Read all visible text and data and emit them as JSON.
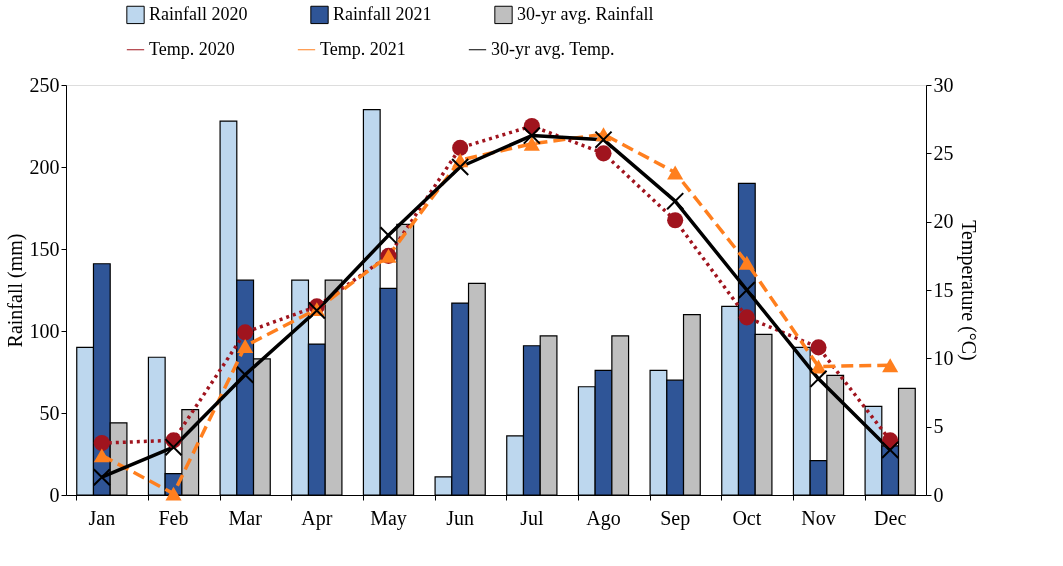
{
  "chart_data": {
    "type": "bar",
    "ylabel": "Rainfall (mm)",
    "y2label": "Temperature (°C)",
    "categories": [
      "Jan",
      "Feb",
      "Mar",
      "Apr",
      "May",
      "Jun",
      "Jul",
      "Ago",
      "Sep",
      "Oct",
      "Nov",
      "Dec"
    ],
    "ylim": [
      0,
      250
    ],
    "yticks": [
      0,
      50,
      100,
      150,
      200,
      250
    ],
    "y2lim": [
      0,
      30
    ],
    "y2ticks": [
      0,
      5,
      10,
      15,
      20,
      25,
      30
    ],
    "legend": "top",
    "grid": false,
    "series": [
      {
        "name": "Rainfall 2020",
        "color": "#bdd7ee",
        "values": [
          90,
          84,
          228,
          131,
          235,
          11,
          36,
          66,
          76,
          115,
          90,
          54
        ]
      },
      {
        "name": "Rainfall 2021",
        "color": "#2f5597",
        "values": [
          141,
          13,
          131,
          92,
          126,
          117,
          91,
          76,
          70,
          190,
          21,
          30
        ]
      },
      {
        "name": "30-yr avg. Rainfall",
        "color": "#bfbfbf",
        "values": [
          44,
          52,
          83,
          131,
          165,
          129,
          97,
          97,
          110,
          98,
          73,
          65
        ]
      },
      {
        "name": "Temp. 2020",
        "type": "line",
        "axis": "y2",
        "color": "#a0141e",
        "marker": "circle",
        "line_style": "dotted",
        "values": [
          3.8,
          4.0,
          11.9,
          13.8,
          17.5,
          25.4,
          27.0,
          25.0,
          20.1,
          13.0,
          10.8,
          4.0
        ]
      },
      {
        "name": "Temp. 2021",
        "type": "line",
        "axis": "y2",
        "color": "#ff7f1e",
        "marker": "triangle",
        "line_style": "dashed",
        "values": [
          2.9,
          0.1,
          10.9,
          13.6,
          17.5,
          24.5,
          25.7,
          26.4,
          23.6,
          17.0,
          9.4,
          9.5
        ]
      },
      {
        "name": "30-yr avg. Temp.",
        "type": "line",
        "axis": "y2",
        "color": "#000000",
        "marker": "cross",
        "line_style": "solid",
        "values": [
          1.3,
          3.5,
          8.8,
          13.5,
          19.0,
          24.0,
          26.3,
          26.0,
          21.5,
          15.0,
          8.5,
          3.3
        ]
      }
    ]
  }
}
